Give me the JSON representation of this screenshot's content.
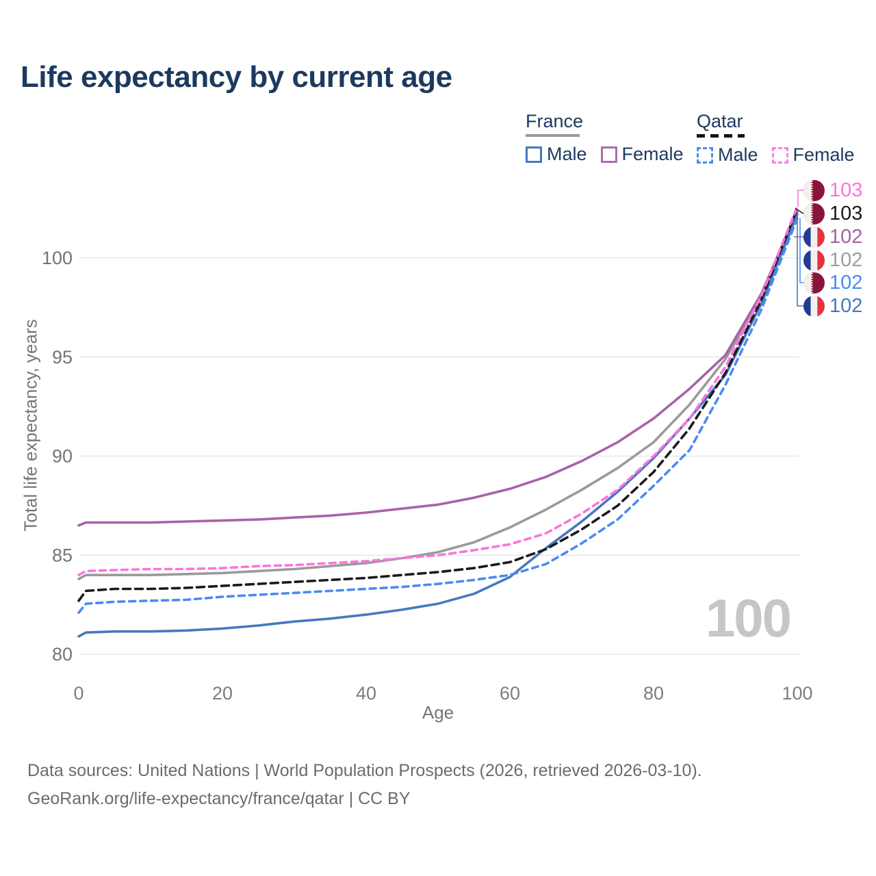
{
  "title": "Life expectancy by current age",
  "legend": {
    "france": {
      "title": "France",
      "male": "Male",
      "female": "Female"
    },
    "qatar": {
      "title": "Qatar",
      "male": "Male",
      "female": "Female"
    }
  },
  "watermark": "100",
  "footer": {
    "line1": "Data sources: United Nations | World Population Prospects (2026, retrieved 2026-03-10).",
    "line2": "GeoRank.org/life-expectancy/france/qatar | CC BY"
  },
  "end_labels": [
    {
      "country": "Qatar",
      "series": "Qatar Female",
      "value": "103",
      "color": "#fb74dd"
    },
    {
      "country": "Qatar",
      "series": "Qatar Both sexes",
      "value": "103",
      "color": "#1a1a1a"
    },
    {
      "country": "France",
      "series": "France Female",
      "value": "102",
      "color": "#a4629e"
    },
    {
      "country": "France",
      "series": "France Both sexes",
      "value": "102",
      "color": "#9e9e9e"
    },
    {
      "country": "Qatar",
      "series": "Qatar Male",
      "value": "102",
      "color": "#4b8af2"
    },
    {
      "country": "France",
      "series": "France Male",
      "value": "102",
      "color": "#4678bf"
    }
  ],
  "chart_data": {
    "type": "line",
    "title": "Life expectancy by current age",
    "xlabel": "Age",
    "ylabel": "Total life expectancy, years",
    "x_ticks": [
      0,
      20,
      40,
      60,
      80,
      100
    ],
    "y_ticks": [
      80,
      85,
      90,
      95,
      100
    ],
    "xlim": [
      0,
      100
    ],
    "ylim": [
      79,
      103.5
    ],
    "grid": "horizontal-only",
    "legend_position": "top-right",
    "x": [
      0,
      1,
      5,
      10,
      15,
      20,
      25,
      30,
      35,
      40,
      45,
      50,
      55,
      60,
      65,
      70,
      75,
      80,
      85,
      90,
      95,
      100
    ],
    "series": [
      {
        "name": "France Both sexes",
        "country": "France",
        "style": "solid",
        "color": "#9a9a9a",
        "values": [
          83.8,
          84.0,
          84.0,
          84.0,
          84.05,
          84.1,
          84.2,
          84.3,
          84.45,
          84.6,
          84.85,
          85.15,
          85.65,
          86.4,
          87.3,
          88.3,
          89.4,
          90.7,
          92.6,
          94.9,
          98.0,
          102.3
        ]
      },
      {
        "name": "France Female",
        "country": "France",
        "style": "solid",
        "color": "#a862a8",
        "values": [
          86.5,
          86.65,
          86.65,
          86.65,
          86.7,
          86.75,
          86.8,
          86.9,
          87.0,
          87.15,
          87.35,
          87.55,
          87.9,
          88.35,
          88.95,
          89.75,
          90.7,
          91.9,
          93.4,
          95.1,
          98.2,
          102.4
        ]
      },
      {
        "name": "France Male",
        "country": "France",
        "style": "solid",
        "color": "#4678bf",
        "values": [
          80.9,
          81.1,
          81.15,
          81.15,
          81.2,
          81.3,
          81.45,
          81.65,
          81.8,
          82.0,
          82.25,
          82.55,
          83.05,
          83.9,
          85.35,
          86.7,
          88.2,
          89.9,
          91.9,
          94.1,
          97.7,
          102.2
        ]
      },
      {
        "name": "Qatar Both sexes",
        "country": "Qatar",
        "style": "dashed",
        "color": "#1a1a1a",
        "values": [
          82.7,
          83.2,
          83.3,
          83.3,
          83.35,
          83.45,
          83.55,
          83.65,
          83.75,
          83.85,
          84.0,
          84.15,
          84.35,
          84.65,
          85.3,
          86.3,
          87.5,
          89.2,
          91.4,
          94.2,
          97.9,
          102.5
        ]
      },
      {
        "name": "Qatar Female",
        "country": "Qatar",
        "style": "dashed",
        "color": "#fb74dd",
        "values": [
          84.0,
          84.2,
          84.25,
          84.3,
          84.3,
          84.35,
          84.45,
          84.5,
          84.6,
          84.7,
          84.85,
          85.0,
          85.25,
          85.55,
          86.1,
          87.1,
          88.3,
          90.0,
          91.9,
          94.5,
          98.1,
          102.6
        ]
      },
      {
        "name": "Qatar Male",
        "country": "Qatar",
        "style": "dashed",
        "color": "#4b8af2",
        "values": [
          82.1,
          82.55,
          82.65,
          82.7,
          82.75,
          82.9,
          83.0,
          83.1,
          83.2,
          83.3,
          83.4,
          83.55,
          83.75,
          84.0,
          84.55,
          85.6,
          86.8,
          88.5,
          90.3,
          93.6,
          97.4,
          102.0
        ]
      }
    ]
  }
}
